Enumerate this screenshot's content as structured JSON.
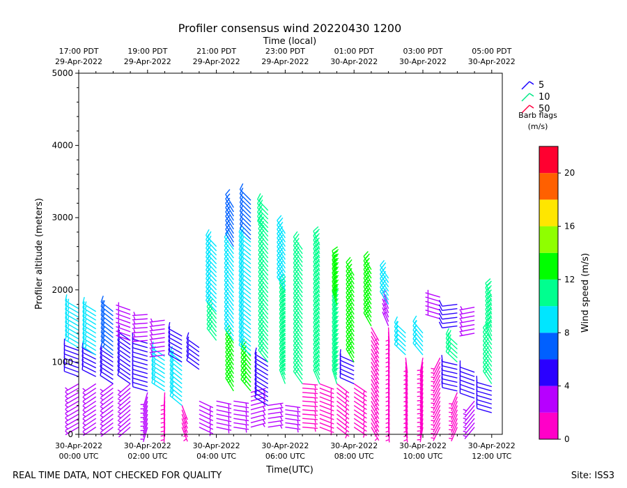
{
  "chart_data": {
    "type": "wind-barb",
    "title": "Profiler consensus wind 20220430 1200",
    "top_axis_label": "Time (local)",
    "xlabel": "Time(UTC)",
    "ylabel": "Profiler altitude (meters)",
    "ylim": [
      0,
      5000
    ],
    "y_ticks": [
      0,
      1000,
      2000,
      3000,
      4000,
      5000
    ],
    "xlim_hours_utc": [
      0,
      12.3
    ],
    "bottom_ticks": [
      {
        "hour": 0,
        "line1": "30-Apr-2022",
        "line2": "00:00 UTC"
      },
      {
        "hour": 2,
        "line1": "30-Apr-2022",
        "line2": "02:00 UTC"
      },
      {
        "hour": 4,
        "line1": "30-Apr-2022",
        "line2": "04:00 UTC"
      },
      {
        "hour": 6,
        "line1": "30-Apr-2022",
        "line2": "06:00 UTC"
      },
      {
        "hour": 8,
        "line1": "30-Apr-2022",
        "line2": "08:00 UTC"
      },
      {
        "hour": 10,
        "line1": "30-Apr-2022",
        "line2": "10:00 UTC"
      },
      {
        "hour": 12,
        "line1": "30-Apr-2022",
        "line2": "12:00 UTC"
      }
    ],
    "top_ticks": [
      {
        "hour": 0,
        "line1": "17:00 PDT",
        "line2": "29-Apr-2022"
      },
      {
        "hour": 2,
        "line1": "19:00 PDT",
        "line2": "29-Apr-2022"
      },
      {
        "hour": 4,
        "line1": "21:00 PDT",
        "line2": "29-Apr-2022"
      },
      {
        "hour": 6,
        "line1": "23:00 PDT",
        "line2": "29-Apr-2022"
      },
      {
        "hour": 8,
        "line1": "01:00 PDT",
        "line2": "30-Apr-2022"
      },
      {
        "hour": 10,
        "line1": "03:00 PDT",
        "line2": "30-Apr-2022"
      },
      {
        "hour": 12,
        "line1": "05:00 PDT",
        "line2": "30-Apr-2022"
      }
    ],
    "barb_legend": {
      "title_line1": "Barb flags",
      "title_line2": "(m/s)",
      "entries": [
        {
          "label": "5",
          "color": "#1a00ff"
        },
        {
          "label": "10",
          "color": "#00e887"
        },
        {
          "label": "50",
          "color": "#ff0040"
        }
      ]
    },
    "colorbar": {
      "label": "Wind speed (m/s)",
      "range": [
        0,
        22
      ],
      "ticks": [
        0,
        4,
        8,
        12,
        16,
        20
      ],
      "bands": [
        {
          "from": 0,
          "to": 2,
          "color": "#ff00c8"
        },
        {
          "from": 2,
          "to": 4,
          "color": "#b700ff"
        },
        {
          "from": 4,
          "to": 6,
          "color": "#2a00ff"
        },
        {
          "from": 6,
          "to": 8,
          "color": "#0060ff"
        },
        {
          "from": 8,
          "to": 10,
          "color": "#00e6ff"
        },
        {
          "from": 10,
          "to": 12,
          "color": "#00ff8f"
        },
        {
          "from": 12,
          "to": 14,
          "color": "#00ff00"
        },
        {
          "from": 14,
          "to": 16,
          "color": "#8fff00"
        },
        {
          "from": 16,
          "to": 18,
          "color": "#ffe600"
        },
        {
          "from": 18,
          "to": 20,
          "color": "#ff6000"
        },
        {
          "from": 20,
          "to": 22,
          "color": "#ff0030"
        }
      ]
    },
    "profiles": [
      {
        "hour": 0.0,
        "segments": [
          {
            "from": 100,
            "to": 700,
            "speed": 2.5,
            "dir": 250
          },
          {
            "from": 800,
            "to": 1200,
            "speed": 5.5,
            "dir": 300
          },
          {
            "from": 1200,
            "to": 1750,
            "speed": 8.5,
            "dir": 310
          }
        ]
      },
      {
        "hour": 0.5,
        "segments": [
          {
            "from": 100,
            "to": 700,
            "speed": 2.5,
            "dir": 240
          },
          {
            "from": 800,
            "to": 1100,
            "speed": 5.5,
            "dir": 300
          },
          {
            "from": 1100,
            "to": 1700,
            "speed": 8.5,
            "dir": 305
          }
        ]
      },
      {
        "hour": 1.0,
        "segments": [
          {
            "from": 100,
            "to": 700,
            "speed": 2.5,
            "dir": 230
          },
          {
            "from": 700,
            "to": 1100,
            "speed": 5.0,
            "dir": 300
          },
          {
            "from": 1100,
            "to": 1700,
            "speed": 7.5,
            "dir": 305
          }
        ]
      },
      {
        "hour": 1.5,
        "segments": [
          {
            "from": 100,
            "to": 700,
            "speed": 2.0,
            "dir": 220
          },
          {
            "from": 700,
            "to": 1300,
            "speed": 4.5,
            "dir": 295
          },
          {
            "from": 1300,
            "to": 1750,
            "speed": 3.5,
            "dir": 280
          }
        ]
      },
      {
        "hour": 2.0,
        "segments": [
          {
            "from": 100,
            "to": 600,
            "speed": 2.0,
            "dir": 200
          },
          {
            "from": 600,
            "to": 1300,
            "speed": 5.0,
            "dir": 290
          },
          {
            "from": 1300,
            "to": 1700,
            "speed": 3.0,
            "dir": 270
          }
        ]
      },
      {
        "hour": 2.5,
        "segments": [
          {
            "from": 100,
            "to": 600,
            "speed": 1.5,
            "dir": 180
          },
          {
            "from": 600,
            "to": 1100,
            "speed": 8.5,
            "dir": 300
          },
          {
            "from": 1100,
            "to": 1600,
            "speed": 3.0,
            "dir": 260
          }
        ]
      },
      {
        "hour": 3.0,
        "segments": [
          {
            "from": 100,
            "to": 400,
            "speed": 1.5,
            "dir": 150
          },
          {
            "from": 400,
            "to": 1000,
            "speed": 8.5,
            "dir": 300
          },
          {
            "from": 1000,
            "to": 1400,
            "speed": 5.0,
            "dir": 290
          }
        ]
      },
      {
        "hour": 3.5,
        "segments": [
          {
            "from": 100,
            "to": 500,
            "speed": 2.5,
            "dir": 120
          },
          {
            "from": 900,
            "to": 1200,
            "speed": 5.5,
            "dir": 310
          }
        ]
      },
      {
        "hour": 4.0,
        "segments": [
          {
            "from": 100,
            "to": 500,
            "speed": 2.5,
            "dir": 100
          },
          {
            "from": 1300,
            "to": 1700,
            "speed": 11.0,
            "dir": 320
          },
          {
            "from": 1700,
            "to": 2600,
            "speed": 9.0,
            "dir": 315
          }
        ]
      },
      {
        "hour": 4.5,
        "segments": [
          {
            "from": 100,
            "to": 500,
            "speed": 2.5,
            "dir": 90
          },
          {
            "from": 600,
            "to": 1300,
            "speed": 12.0,
            "dir": 320
          },
          {
            "from": 1300,
            "to": 2600,
            "speed": 8.5,
            "dir": 315
          },
          {
            "from": 2600,
            "to": 3150,
            "speed": 6.0,
            "dir": 320
          }
        ]
      },
      {
        "hour": 5.0,
        "segments": [
          {
            "from": 100,
            "to": 600,
            "speed": 2.0,
            "dir": 80
          },
          {
            "from": 600,
            "to": 1100,
            "speed": 12.0,
            "dir": 325
          },
          {
            "from": 1100,
            "to": 2700,
            "speed": 9.5,
            "dir": 315
          },
          {
            "from": 2700,
            "to": 3250,
            "speed": 6.0,
            "dir": 320
          }
        ]
      },
      {
        "hour": 5.5,
        "segments": [
          {
            "from": 100,
            "to": 400,
            "speed": 2.0,
            "dir": 80
          },
          {
            "from": 400,
            "to": 1000,
            "speed": 5.5,
            "dir": 300
          },
          {
            "from": 1000,
            "to": 2800,
            "speed": 10.5,
            "dir": 320
          },
          {
            "from": 2800,
            "to": 3100,
            "speed": 11.0,
            "dir": 315
          }
        ]
      },
      {
        "hour": 6.0,
        "segments": [
          {
            "from": 100,
            "to": 400,
            "speed": 2.0,
            "dir": 90
          },
          {
            "from": 700,
            "to": 2000,
            "speed": 11.5,
            "dir": 330
          },
          {
            "from": 2000,
            "to": 2800,
            "speed": 9.0,
            "dir": 320
          }
        ]
      },
      {
        "hour": 6.5,
        "segments": [
          {
            "from": 100,
            "to": 700,
            "speed": 1.5,
            "dir": 100
          },
          {
            "from": 700,
            "to": 2600,
            "speed": 10.5,
            "dir": 330
          }
        ]
      },
      {
        "hour": 7.0,
        "segments": [
          {
            "from": 100,
            "to": 700,
            "speed": 1.5,
            "dir": 110
          },
          {
            "from": 700,
            "to": 2650,
            "speed": 11.0,
            "dir": 335
          }
        ]
      },
      {
        "hour": 7.5,
        "segments": [
          {
            "from": 100,
            "to": 700,
            "speed": 1.5,
            "dir": 120
          },
          {
            "from": 700,
            "to": 1800,
            "speed": 11.5,
            "dir": 335
          },
          {
            "from": 1800,
            "to": 2350,
            "speed": 13.0,
            "dir": 335
          }
        ]
      },
      {
        "hour": 8.0,
        "segments": [
          {
            "from": 100,
            "to": 700,
            "speed": 1.5,
            "dir": 130
          },
          {
            "from": 700,
            "to": 1000,
            "speed": 5.5,
            "dir": 300
          },
          {
            "from": 1000,
            "to": 2250,
            "speed": 12.0,
            "dir": 335
          }
        ]
      },
      {
        "hour": 8.5,
        "segments": [
          {
            "from": 100,
            "to": 1500,
            "speed": 1.5,
            "dir": 150
          },
          {
            "from": 1500,
            "to": 2300,
            "speed": 13.0,
            "dir": 330
          }
        ]
      },
      {
        "hour": 9.0,
        "segments": [
          {
            "from": 100,
            "to": 1500,
            "speed": 1.5,
            "dir": 170
          },
          {
            "from": 1500,
            "to": 1800,
            "speed": 3.0,
            "dir": 330
          },
          {
            "from": 1800,
            "to": 2200,
            "speed": 9.5,
            "dir": 320
          }
        ]
      },
      {
        "hour": 9.5,
        "segments": [
          {
            "from": 100,
            "to": 1100,
            "speed": 1.5,
            "dir": 180
          },
          {
            "from": 1100,
            "to": 1400,
            "speed": 8.5,
            "dir": 320
          }
        ]
      },
      {
        "hour": 10.0,
        "segments": [
          {
            "from": 100,
            "to": 1100,
            "speed": 1.5,
            "dir": 190
          },
          {
            "from": 1100,
            "to": 1400,
            "speed": 8.5,
            "dir": 320
          }
        ]
      },
      {
        "hour": 10.5,
        "segments": [
          {
            "from": 100,
            "to": 1100,
            "speed": 1.5,
            "dir": 200
          },
          {
            "from": 1600,
            "to": 1900,
            "speed": 3.0,
            "dir": 280
          }
        ]
      },
      {
        "hour": 11.0,
        "segments": [
          {
            "from": 100,
            "to": 600,
            "speed": 1.5,
            "dir": 210
          },
          {
            "from": 600,
            "to": 1000,
            "speed": 5.0,
            "dir": 290
          },
          {
            "from": 1000,
            "to": 1250,
            "speed": 11.0,
            "dir": 320
          },
          {
            "from": 1500,
            "to": 1850,
            "speed": 5.0,
            "dir": 270
          }
        ]
      },
      {
        "hour": 11.5,
        "segments": [
          {
            "from": 100,
            "to": 500,
            "speed": 2.0,
            "dir": 220
          },
          {
            "from": 500,
            "to": 900,
            "speed": 5.5,
            "dir": 290
          },
          {
            "from": 1400,
            "to": 1800,
            "speed": 3.0,
            "dir": 260
          }
        ]
      },
      {
        "hour": 12.0,
        "segments": [
          {
            "from": 300,
            "to": 700,
            "speed": 5.0,
            "dir": 280
          },
          {
            "from": 700,
            "to": 1300,
            "speed": 10.0,
            "dir": 320
          },
          {
            "from": 1300,
            "to": 1900,
            "speed": 11.0,
            "dir": 330
          }
        ]
      }
    ]
  },
  "footer": {
    "disclaimer": "REAL TIME DATA, NOT CHECKED FOR QUALITY",
    "site": "Site: ISS3"
  }
}
